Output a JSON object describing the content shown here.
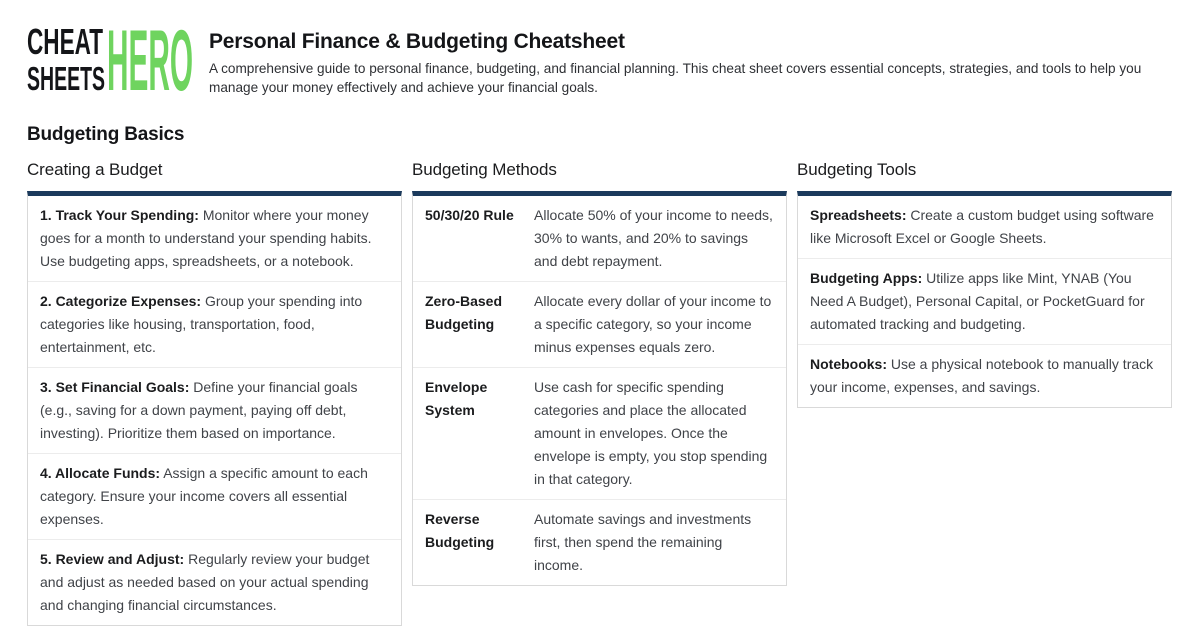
{
  "logo": {
    "line1": "CHEAT",
    "line2": "SHEETS",
    "accent": "HERO"
  },
  "header": {
    "title": "Personal Finance & Budgeting Cheatsheet",
    "subtitle": "A comprehensive guide to personal finance, budgeting, and financial planning. This cheat sheet covers essential concepts, strategies, and tools to help you manage your money effectively and achieve your financial goals."
  },
  "section": {
    "title": "Budgeting Basics"
  },
  "columns": [
    {
      "title": "Creating a Budget",
      "items": [
        {
          "term": "1. Track Your Spending:",
          "text": "Monitor where your money goes for a month to understand your spending habits. Use budgeting apps, spreadsheets, or a notebook."
        },
        {
          "term": "2. Categorize Expenses:",
          "text": "Group your spending into categories like housing, transportation, food, entertainment, etc."
        },
        {
          "term": "3. Set Financial Goals:",
          "text": "Define your financial goals (e.g., saving for a down payment, paying off debt, investing). Prioritize them based on importance."
        },
        {
          "term": "4. Allocate Funds:",
          "text": "Assign a specific amount to each category. Ensure your income covers all essential expenses."
        },
        {
          "term": "5. Review and Adjust:",
          "text": "Regularly review your budget and adjust as needed based on your actual spending and changing financial circumstances."
        }
      ]
    },
    {
      "title": "Budgeting Methods",
      "rows": [
        {
          "term": "50/30/20 Rule",
          "definition": "Allocate 50% of your income to needs, 30% to wants, and 20% to savings and debt repayment."
        },
        {
          "term": "Zero-Based Budgeting",
          "definition": "Allocate every dollar of your income to a specific category, so your income minus expenses equals zero."
        },
        {
          "term": "Envelope System",
          "definition": "Use cash for specific spending categories and place the allocated amount in envelopes. Once the envelope is empty, you stop spending in that category."
        },
        {
          "term": "Reverse Budgeting",
          "definition": "Automate savings and investments first, then spend the remaining income."
        }
      ]
    },
    {
      "title": "Budgeting Tools",
      "items": [
        {
          "term": "Spreadsheets:",
          "text": "Create a custom budget using software like Microsoft Excel or Google Sheets."
        },
        {
          "term": "Budgeting Apps:",
          "text": "Utilize apps like Mint, YNAB (You Need A Budget), Personal Capital, or PocketGuard for automated tracking and budgeting."
        },
        {
          "term": "Notebooks:",
          "text": "Use a physical notebook to manually track your income, expenses, and savings."
        }
      ]
    }
  ],
  "colors": {
    "accent_green": "#6fd45f",
    "bar_navy": "#1b3a5c"
  }
}
